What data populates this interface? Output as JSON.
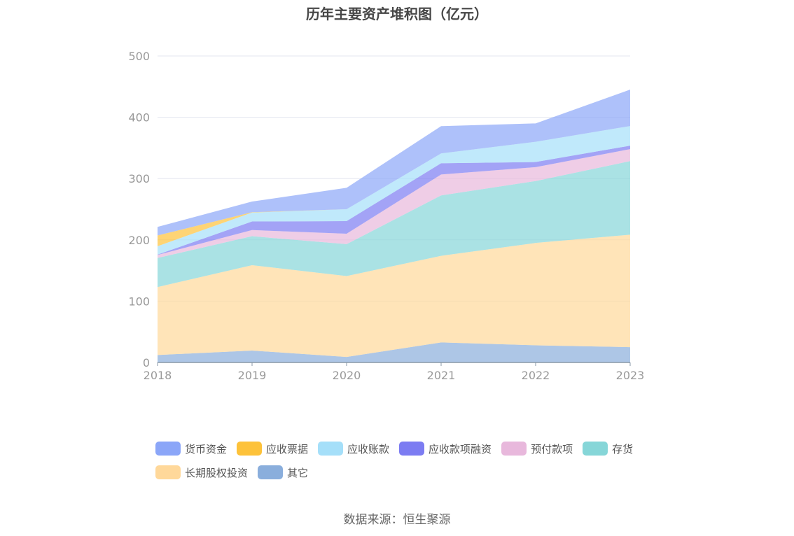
{
  "chart_data": {
    "type": "area",
    "stacked": true,
    "title": "历年主要资产堆积图（亿元）",
    "categories": [
      "2018",
      "2019",
      "2020",
      "2021",
      "2022",
      "2023"
    ],
    "ylim": [
      0,
      500
    ],
    "yticks": [
      "0",
      "100",
      "200",
      "300",
      "400",
      "500"
    ],
    "grid": true,
    "legend_position": "bottom",
    "series": [
      {
        "name": "货币资金",
        "color": "#8ba6f8",
        "values": [
          14,
          17.4,
          35,
          44.5,
          30,
          59.5
        ]
      },
      {
        "name": "应收票据",
        "color": "#fdc23a",
        "values": [
          17.5,
          0.5,
          0,
          0,
          0,
          0
        ]
      },
      {
        "name": "应收账款",
        "color": "#a5dff9",
        "values": [
          13.8,
          14.6,
          19.4,
          16,
          33,
          32
        ]
      },
      {
        "name": "应收款项融资",
        "color": "#7c7cf2",
        "values": [
          0.5,
          14,
          20.6,
          18.3,
          8.4,
          5.6
        ]
      },
      {
        "name": "预付款项",
        "color": "#e8b8dc",
        "values": [
          4.9,
          10,
          17,
          34.2,
          22.6,
          19.6
        ]
      },
      {
        "name": "存货",
        "color": "#86d6d8",
        "values": [
          47.5,
          47.3,
          52,
          98.5,
          101,
          120
        ]
      },
      {
        "name": "长期股权投资",
        "color": "#ffd89a",
        "values": [
          110.8,
          139.3,
          132,
          141.3,
          167,
          183.5
        ]
      },
      {
        "name": "其它",
        "color": "#8aaedc",
        "values": [
          12.2,
          19.4,
          9,
          32.7,
          28,
          25
        ]
      }
    ]
  },
  "source": "数据来源：恒生聚源"
}
